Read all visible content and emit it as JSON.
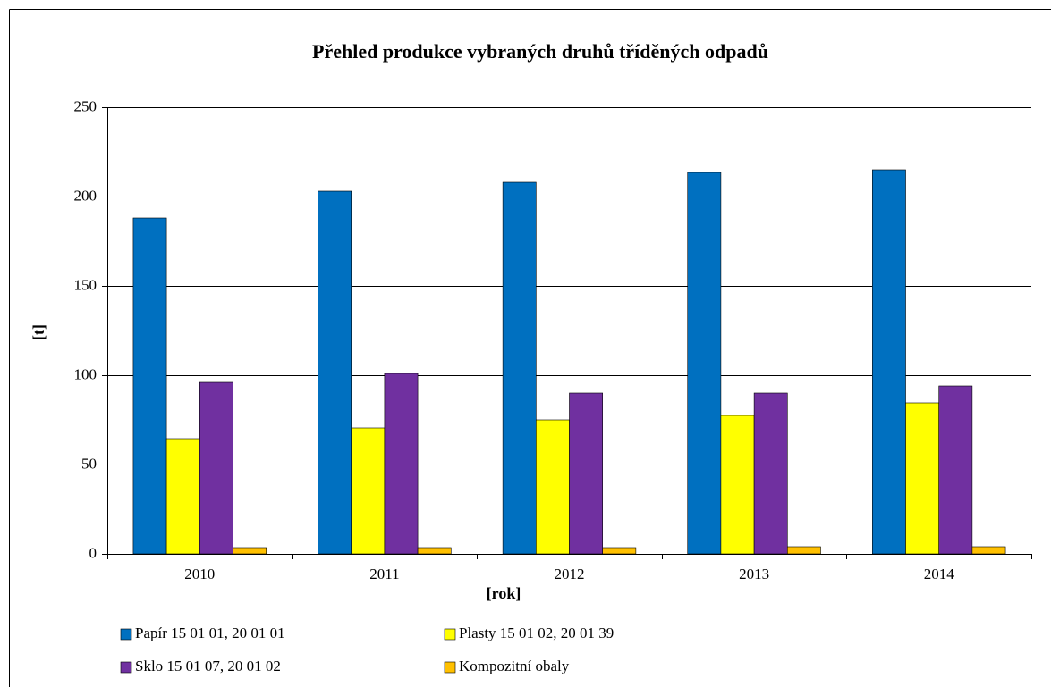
{
  "chart_data": {
    "type": "bar",
    "title": "Přehled produkce vybraných druhů tříděných odpadů",
    "y_label": "[t]",
    "x_label": "[rok]",
    "categories": [
      "2010",
      "2011",
      "2012",
      "2013",
      "2014"
    ],
    "series": [
      {
        "name": "Papír 15 01 01, 20 01 01",
        "color": "#0070c0",
        "values": [
          188,
          203,
          208,
          213.5,
          215
        ]
      },
      {
        "name": "Plasty 15 01 02, 20 01 39",
        "color": "#ffff00",
        "values": [
          64.5,
          70.5,
          75,
          77.5,
          84.5
        ]
      },
      {
        "name": "Sklo 15 01 07, 20 01 02",
        "color": "#7030a0",
        "values": [
          96,
          101,
          90,
          90,
          94
        ]
      },
      {
        "name": "Kompozitní obaly",
        "color": "#ffc000",
        "values": [
          3.5,
          3.5,
          3.5,
          4,
          4
        ]
      }
    ],
    "ylim": [
      0,
      250
    ],
    "yticks": [
      0,
      50,
      100,
      150,
      200,
      250
    ],
    "grid": true,
    "legend": "bottom"
  }
}
